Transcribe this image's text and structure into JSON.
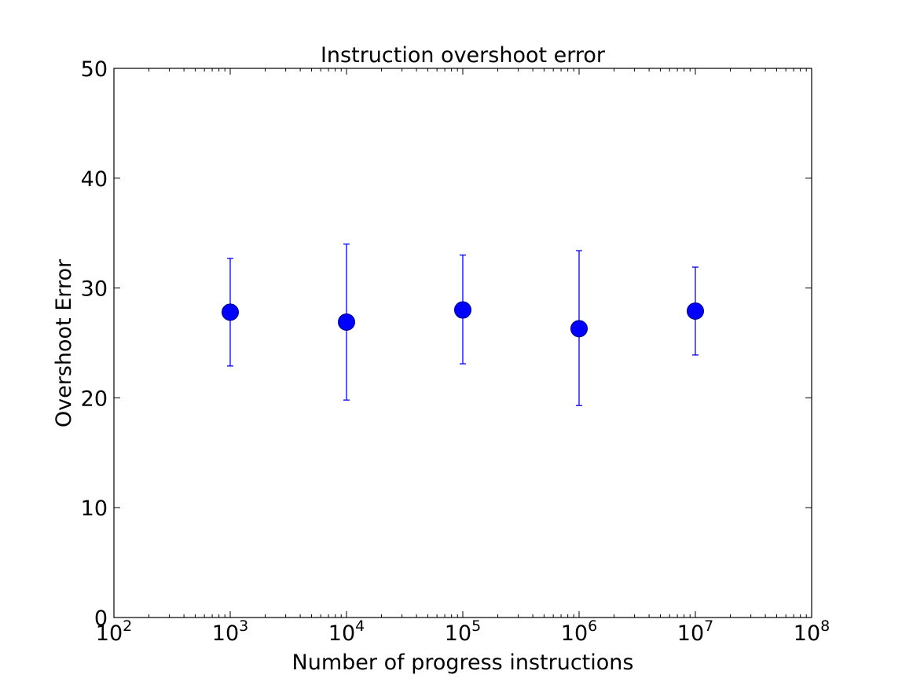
{
  "chart_data": {
    "type": "scatter",
    "title": "Instruction overshoot error",
    "xlabel": "Number of progress instructions",
    "ylabel": "Overshoot Error",
    "xscale": "log",
    "xlim": [
      100,
      100000000
    ],
    "ylim": [
      0,
      50
    ],
    "grid": false,
    "x_ticks": [
      {
        "base": "10",
        "exp": "2",
        "value": 100
      },
      {
        "base": "10",
        "exp": "3",
        "value": 1000
      },
      {
        "base": "10",
        "exp": "4",
        "value": 10000
      },
      {
        "base": "10",
        "exp": "5",
        "value": 100000
      },
      {
        "base": "10",
        "exp": "6",
        "value": 1000000
      },
      {
        "base": "10",
        "exp": "7",
        "value": 10000000
      },
      {
        "base": "10",
        "exp": "8",
        "value": 100000000
      }
    ],
    "y_ticks": [
      {
        "label": "0",
        "value": 0
      },
      {
        "label": "10",
        "value": 10
      },
      {
        "label": "20",
        "value": 20
      },
      {
        "label": "30",
        "value": 30
      },
      {
        "label": "40",
        "value": 40
      },
      {
        "label": "50",
        "value": 50
      }
    ],
    "marker_color": "#0000ff",
    "series": [
      {
        "points": [
          {
            "x": 1000,
            "y": 27.8,
            "err_low": 22.9,
            "err_high": 32.7
          },
          {
            "x": 10000,
            "y": 26.9,
            "err_low": 19.8,
            "err_high": 34.0
          },
          {
            "x": 100000,
            "y": 28.0,
            "err_low": 23.1,
            "err_high": 33.0
          },
          {
            "x": 1000000,
            "y": 26.3,
            "err_low": 19.3,
            "err_high": 33.4
          },
          {
            "x": 10000000,
            "y": 27.9,
            "err_low": 23.9,
            "err_high": 31.9
          }
        ]
      }
    ]
  }
}
